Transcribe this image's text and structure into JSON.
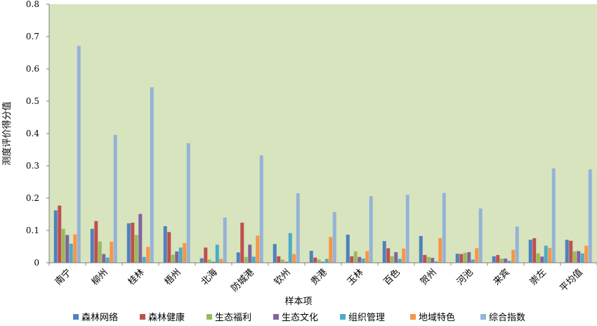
{
  "chart_data": {
    "type": "bar",
    "xlabel": "样本项",
    "ylabel": "测度评价得分值",
    "ylim": [
      0,
      0.8
    ],
    "yticks": [
      "0",
      "0.1",
      "0.2",
      "0.3",
      "0.4",
      "0.5",
      "0.6",
      "0.7",
      "0.8"
    ],
    "grid": false,
    "legend_position": "bottom",
    "plot_background": "#d7e4bd",
    "categories": [
      "南宁",
      "柳州",
      "桂林",
      "梧州",
      "北海",
      "防城港",
      "钦州",
      "贵港",
      "玉林",
      "百色",
      "贺州",
      "河池",
      "来宾",
      "崇左",
      "平均值"
    ],
    "series": [
      {
        "name": "森林网络",
        "color": "#4f81bd",
        "values": [
          0.162,
          0.105,
          0.122,
          0.113,
          0.014,
          0.032,
          0.058,
          0.037,
          0.087,
          0.067,
          0.083,
          0.028,
          0.02,
          0.071,
          0.071
        ]
      },
      {
        "name": "森林健康",
        "color": "#c0504d",
        "values": [
          0.177,
          0.129,
          0.124,
          0.095,
          0.047,
          0.124,
          0.02,
          0.016,
          0.02,
          0.045,
          0.024,
          0.027,
          0.024,
          0.076,
          0.068
        ]
      },
      {
        "name": "生态福利",
        "color": "#9bbb59",
        "values": [
          0.105,
          0.066,
          0.086,
          0.025,
          0.01,
          0.018,
          0.01,
          0.01,
          0.035,
          0.02,
          0.018,
          0.031,
          0.013,
          0.029,
          0.035
        ]
      },
      {
        "name": "生态文化",
        "color": "#8064a2",
        "values": [
          0.086,
          0.027,
          0.151,
          0.035,
          0.003,
          0.056,
          0.003,
          0.003,
          0.018,
          0.033,
          0.015,
          0.033,
          0.013,
          0.019,
          0.036
        ]
      },
      {
        "name": "组织管理",
        "color": "#4bacc6",
        "values": [
          0.059,
          0.016,
          0.018,
          0.047,
          0.056,
          0.019,
          0.092,
          0.012,
          0.013,
          0.012,
          0.004,
          0.01,
          0.006,
          0.053,
          0.029
        ]
      },
      {
        "name": "地域特色",
        "color": "#f79646",
        "values": [
          0.088,
          0.065,
          0.049,
          0.061,
          0.012,
          0.084,
          0.027,
          0.08,
          0.036,
          0.044,
          0.076,
          0.045,
          0.04,
          0.046,
          0.053
        ]
      },
      {
        "name": "综合指数",
        "color": "#95b3d7",
        "values": [
          0.671,
          0.396,
          0.543,
          0.37,
          0.14,
          0.332,
          0.215,
          0.157,
          0.206,
          0.21,
          0.216,
          0.168,
          0.112,
          0.292,
          0.289
        ]
      }
    ]
  }
}
